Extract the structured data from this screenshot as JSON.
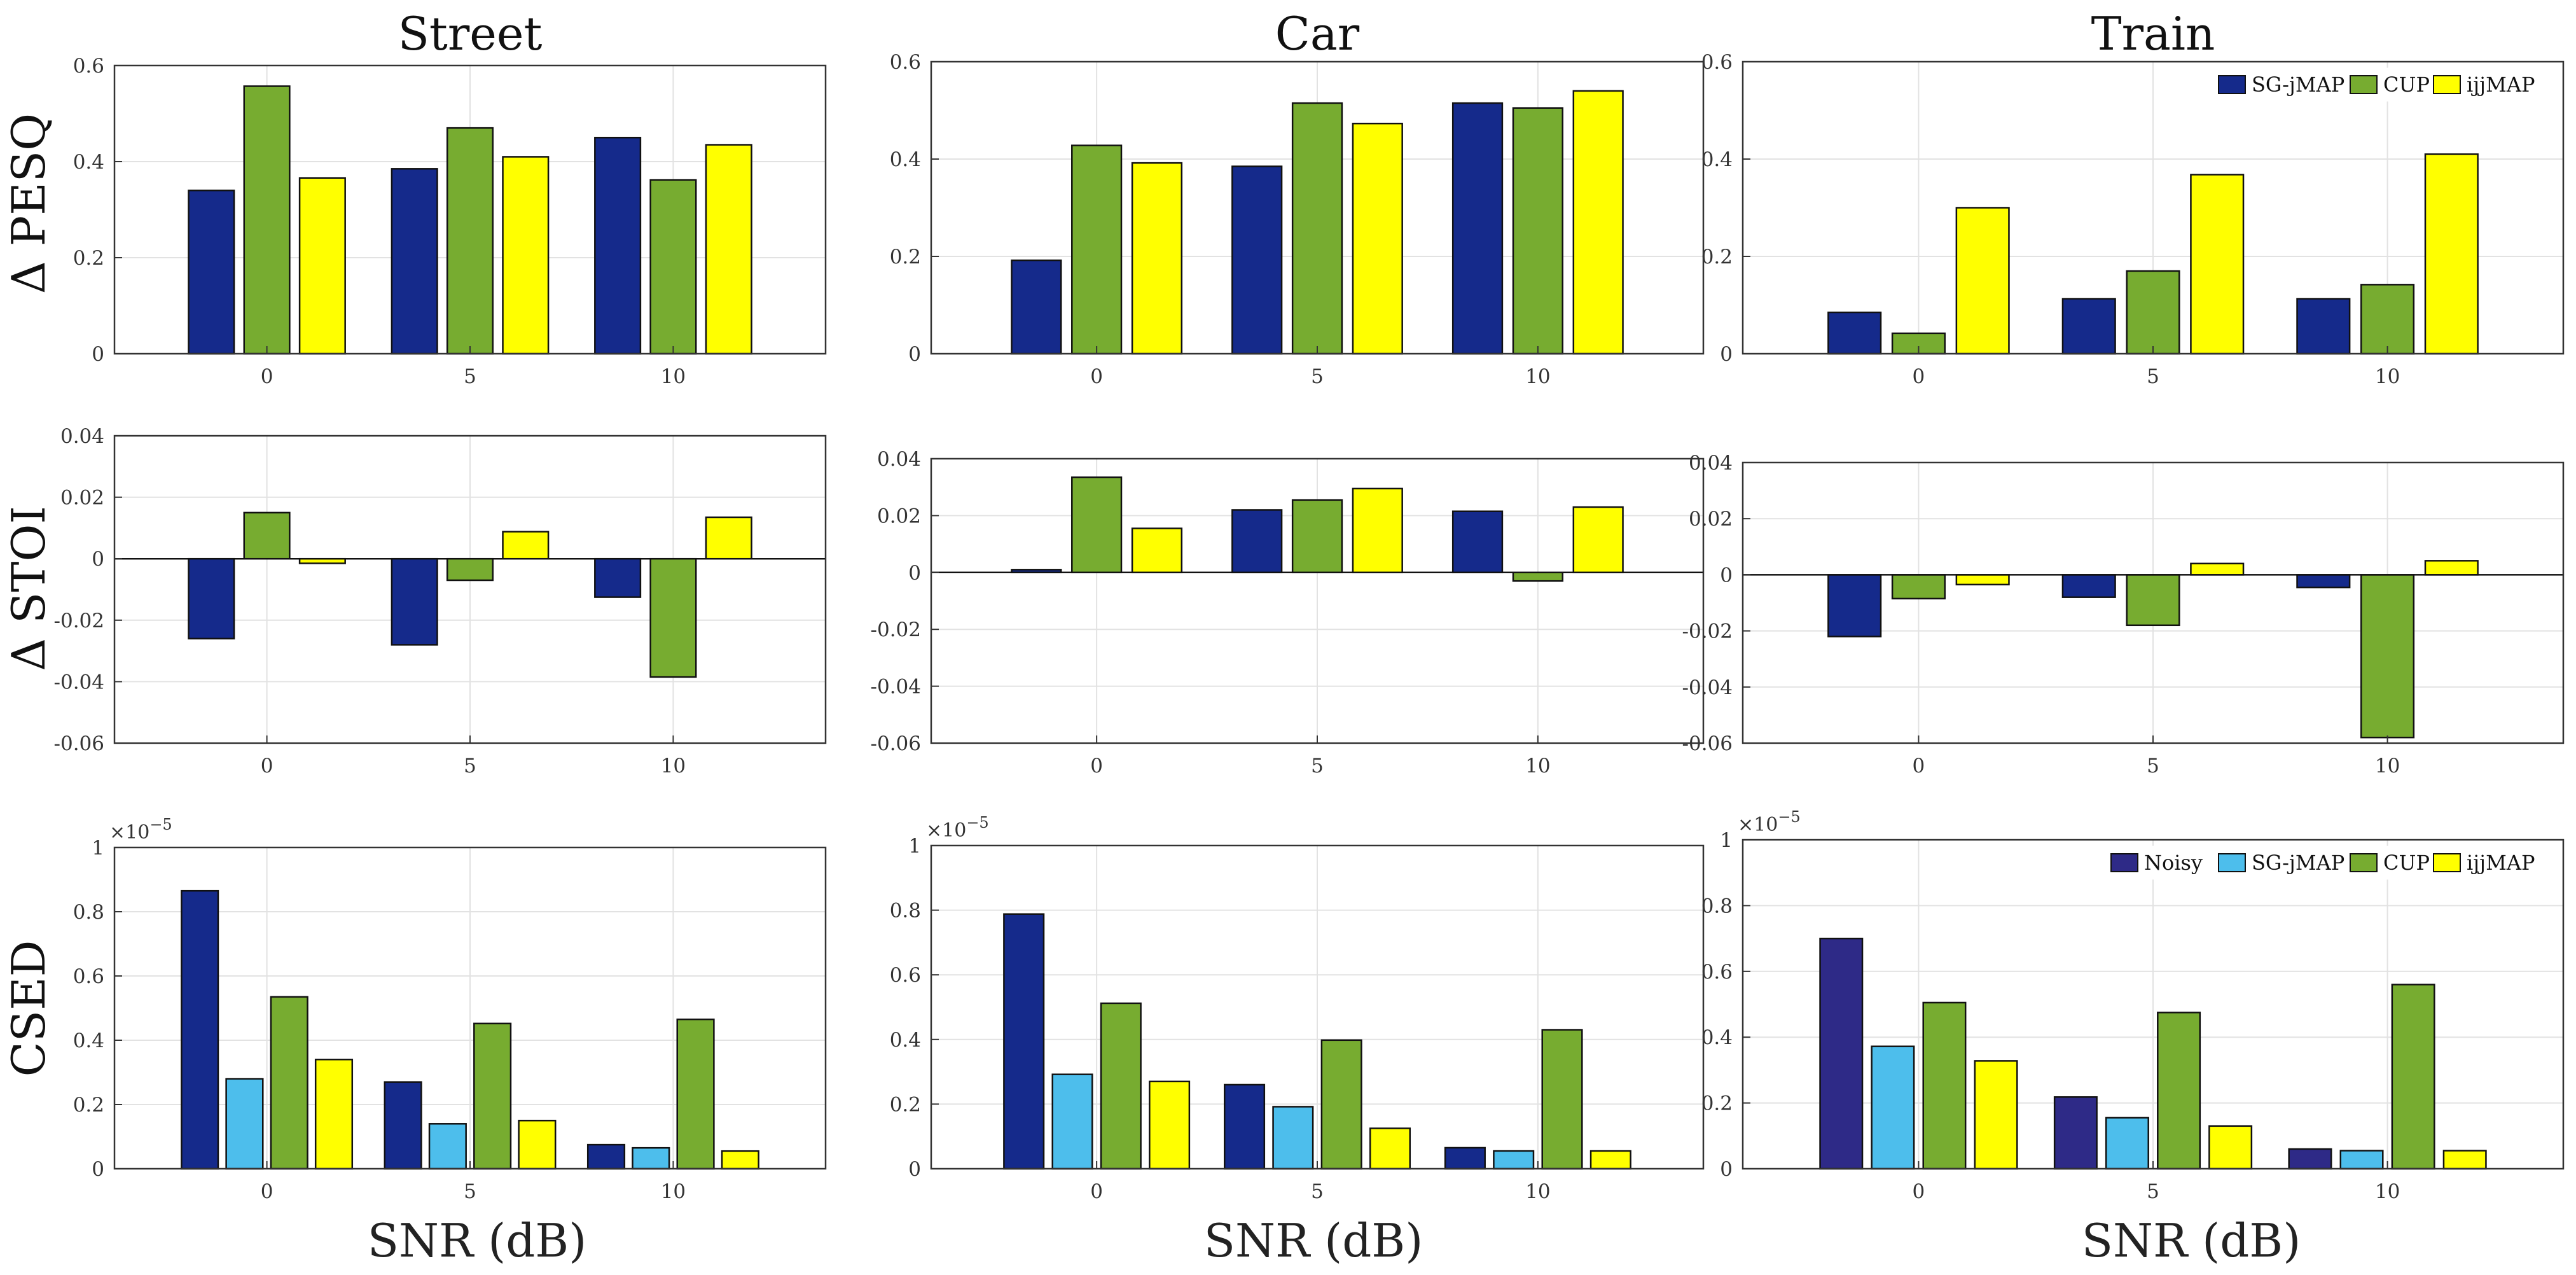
{
  "figure": {
    "column_titles": [
      "Street",
      "Car",
      "Train"
    ],
    "row_labels": [
      "Δ PESQ",
      "Δ STOI",
      "CSED"
    ],
    "xlabel": "SNR (dB)",
    "exponent_label": "×10",
    "exponent_power": "−5",
    "colors": {
      "SG-jMAP-dark": "#152a8b",
      "SG-jMAP-light": "#4dbeec",
      "Noisy": "#2e2a87",
      "CUP": "#77ac30",
      "ijjMAP": "#ffff00"
    }
  },
  "chart_data": [
    {
      "type": "bar",
      "row": 0,
      "col": 0,
      "categories": [
        "0",
        "5",
        "10"
      ],
      "ylim": [
        0,
        0.6
      ],
      "yticks": [
        "0",
        "0.2",
        "0.4",
        "0.6"
      ],
      "series": [
        {
          "color": "#152a8b",
          "values": [
            0.34,
            0.385,
            0.45
          ]
        },
        {
          "color": "#77ac30",
          "values": [
            0.557,
            0.47,
            0.362
          ]
        },
        {
          "color": "#ffff00",
          "values": [
            0.366,
            0.41,
            0.435
          ]
        }
      ],
      "legend": null
    },
    {
      "type": "bar",
      "row": 0,
      "col": 1,
      "categories": [
        "0",
        "5",
        "10"
      ],
      "ylim": [
        0,
        0.6
      ],
      "yticks": [
        "0",
        "0.2",
        "0.4",
        "0.6"
      ],
      "series": [
        {
          "color": "#152a8b",
          "values": [
            0.192,
            0.385,
            0.515
          ]
        },
        {
          "color": "#77ac30",
          "values": [
            0.428,
            0.515,
            0.505
          ]
        },
        {
          "color": "#ffff00",
          "values": [
            0.392,
            0.473,
            0.54
          ]
        }
      ],
      "legend": null
    },
    {
      "type": "bar",
      "row": 0,
      "col": 2,
      "categories": [
        "0",
        "5",
        "10"
      ],
      "ylim": [
        0,
        0.6
      ],
      "yticks": [
        "0",
        "0.2",
        "0.4",
        "0.6"
      ],
      "series": [
        {
          "name": "SG-jMAP",
          "color": "#152a8b",
          "values": [
            0.085,
            0.113,
            0.113
          ]
        },
        {
          "name": "CUP",
          "color": "#77ac30",
          "values": [
            0.042,
            0.17,
            0.142
          ]
        },
        {
          "name": "ijjMAP",
          "color": "#ffff00",
          "values": [
            0.3,
            0.368,
            0.41
          ]
        }
      ],
      "legend": "top-right"
    },
    {
      "type": "bar",
      "row": 1,
      "col": 0,
      "categories": [
        "0",
        "5",
        "10"
      ],
      "ylim": [
        -0.06,
        0.04
      ],
      "yticks": [
        "-0.06",
        "-0.04",
        "-0.02",
        "0",
        "0.02",
        "0.04"
      ],
      "series": [
        {
          "color": "#152a8b",
          "values": [
            -0.026,
            -0.028,
            -0.0125
          ]
        },
        {
          "color": "#77ac30",
          "values": [
            0.015,
            -0.007,
            -0.0385
          ]
        },
        {
          "color": "#ffff00",
          "values": [
            -0.0015,
            0.0088,
            0.0135
          ]
        }
      ],
      "legend": null
    },
    {
      "type": "bar",
      "row": 1,
      "col": 1,
      "categories": [
        "0",
        "5",
        "10"
      ],
      "ylim": [
        -0.06,
        0.04
      ],
      "yticks": [
        "-0.06",
        "-0.04",
        "-0.02",
        "0",
        "0.02",
        "0.04"
      ],
      "series": [
        {
          "color": "#152a8b",
          "values": [
            0.001,
            0.022,
            0.0215
          ]
        },
        {
          "color": "#77ac30",
          "values": [
            0.0335,
            0.0255,
            -0.003
          ]
        },
        {
          "color": "#ffff00",
          "values": [
            0.0155,
            0.0295,
            0.023
          ]
        }
      ],
      "legend": null
    },
    {
      "type": "bar",
      "row": 1,
      "col": 2,
      "categories": [
        "0",
        "5",
        "10"
      ],
      "ylim": [
        -0.06,
        0.04
      ],
      "yticks": [
        "-0.06",
        "-0.04",
        "-0.02",
        "0",
        "0.02",
        "0.04"
      ],
      "series": [
        {
          "color": "#152a8b",
          "values": [
            -0.022,
            -0.008,
            -0.0045
          ]
        },
        {
          "color": "#77ac30",
          "values": [
            -0.0085,
            -0.018,
            -0.058
          ]
        },
        {
          "color": "#ffff00",
          "values": [
            -0.0035,
            0.004,
            0.005
          ]
        }
      ],
      "legend": null
    },
    {
      "type": "bar",
      "row": 2,
      "col": 0,
      "categories": [
        "0",
        "5",
        "10"
      ],
      "ylim": [
        0,
        1e-05
      ],
      "yticks": [
        "0",
        "0.2",
        "0.4",
        "0.6",
        "0.8",
        "1"
      ],
      "exponent": true,
      "series": [
        {
          "color": "#152a8b",
          "values": [
            8.65e-06,
            2.7e-06,
            7.5e-07
          ]
        },
        {
          "color": "#4dbeec",
          "values": [
            2.8e-06,
            1.4e-06,
            6.5e-07
          ]
        },
        {
          "color": "#77ac30",
          "values": [
            5.35e-06,
            4.52e-06,
            4.65e-06
          ]
        },
        {
          "color": "#ffff00",
          "values": [
            3.4e-06,
            1.5e-06,
            5.5e-07
          ]
        }
      ],
      "legend": null
    },
    {
      "type": "bar",
      "row": 2,
      "col": 1,
      "categories": [
        "0",
        "5",
        "10"
      ],
      "ylim": [
        0,
        1e-05
      ],
      "yticks": [
        "0",
        "0.2",
        "0.4",
        "0.6",
        "0.8",
        "1"
      ],
      "exponent": true,
      "series": [
        {
          "color": "#152a8b",
          "values": [
            7.88e-06,
            2.6e-06,
            6.5e-07
          ]
        },
        {
          "color": "#4dbeec",
          "values": [
            2.92e-06,
            1.92e-06,
            5.5e-07
          ]
        },
        {
          "color": "#77ac30",
          "values": [
            5.12e-06,
            3.98e-06,
            4.3e-06
          ]
        },
        {
          "color": "#ffff00",
          "values": [
            2.7e-06,
            1.25e-06,
            5.5e-07
          ]
        }
      ],
      "legend": null
    },
    {
      "type": "bar",
      "row": 2,
      "col": 2,
      "categories": [
        "0",
        "5",
        "10"
      ],
      "ylim": [
        0,
        1e-05
      ],
      "yticks": [
        "0",
        "0.2",
        "0.4",
        "0.6",
        "0.8",
        "1"
      ],
      "exponent": true,
      "series": [
        {
          "name": "Noisy",
          "color": "#2e2a87",
          "values": [
            7e-06,
            2.18e-06,
            6e-07
          ]
        },
        {
          "name": "SG-jMAP",
          "color": "#4dbeec",
          "values": [
            3.72e-06,
            1.55e-06,
            5.5e-07
          ]
        },
        {
          "name": "CUP",
          "color": "#77ac30",
          "values": [
            5.05e-06,
            4.75e-06,
            5.6e-06
          ]
        },
        {
          "name": "ijjMAP",
          "color": "#ffff00",
          "values": [
            3.28e-06,
            1.3e-06,
            5.5e-07
          ]
        }
      ],
      "legend": "top-right"
    }
  ]
}
